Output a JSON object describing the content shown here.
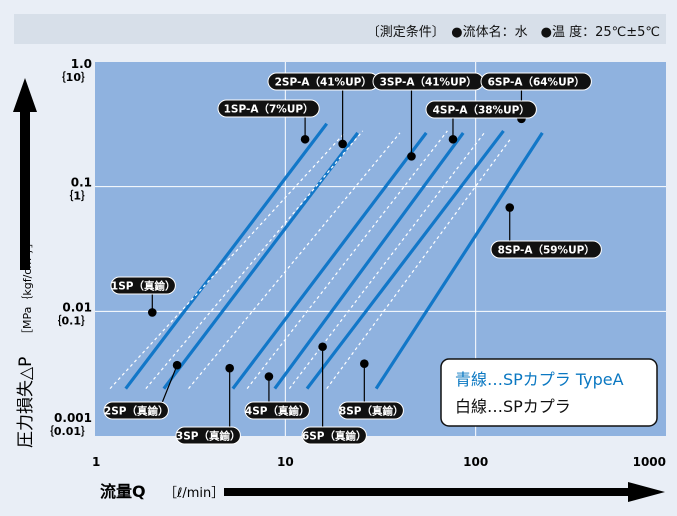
{
  "chart_data": {
    "type": "line",
    "conditions": "〔測定条件〕　●流体名：水　●温 度：25℃±5℃",
    "ylabel": "圧力損失△P",
    "ylabel_unit": "［MPa｛kgf/cm²｝］",
    "xlabel": "流量Q",
    "xlabel_unit": "［ℓ/min］",
    "xscale": "log",
    "yscale": "log",
    "xlim": [
      1,
      1000
    ],
    "ylim": [
      0.001,
      1.0
    ],
    "x_ticks": [
      {
        "value": 1,
        "label": "1"
      },
      {
        "value": 10,
        "label": "10"
      },
      {
        "value": 100,
        "label": "100"
      },
      {
        "value": 1000,
        "label": "1000"
      }
    ],
    "y_ticks": [
      {
        "value": 1.0,
        "label": "1.0",
        "sublabel": "｛10｝"
      },
      {
        "value": 0.1,
        "label": "0.1",
        "sublabel": "｛1｝"
      },
      {
        "value": 0.01,
        "label": "0.01",
        "sublabel": "｛0.1｝"
      },
      {
        "value": 0.001,
        "label": "0.001",
        "sublabel": "｛0.01｝"
      }
    ],
    "grid": true,
    "legend": {
      "placement": "bottom-right",
      "entries": [
        {
          "text": "青線…SPカプラ TypeA",
          "color": "#0b78c2"
        },
        {
          "text": "白線…SPカプラ",
          "color": "#111111"
        }
      ]
    },
    "colors": {
      "background": "#8fb2df",
      "blue_line": "#1277c8",
      "white_line": "#ffffff",
      "label_bg": "#111111"
    },
    "series": [
      {
        "name": "1SP-A（7%UP）",
        "style": "blue",
        "x": [
          1.45,
          16.5
        ],
        "y": [
          0.0024,
          0.32
        ],
        "marker": [
          12.7,
          0.24
        ]
      },
      {
        "name": "1SP（真鍮）",
        "style": "white",
        "x": [
          1.2,
          20.5
        ],
        "y": [
          0.0024,
          0.27
        ],
        "marker": [
          2.0,
          0.0098
        ]
      },
      {
        "name": "2SP-A（41%UP）",
        "style": "blue",
        "x": [
          2.3,
          24
        ],
        "y": [
          0.0024,
          0.27
        ],
        "marker": [
          20,
          0.22
        ]
      },
      {
        "name": "2SP（真鍮）",
        "style": "white",
        "x": [
          1.85,
          25.5
        ],
        "y": [
          0.0024,
          0.28
        ],
        "marker": [
          2.7,
          0.0037
        ]
      },
      {
        "name": "3SP-A（41%UP）",
        "style": "blue",
        "x": [
          5.3,
          55
        ],
        "y": [
          0.0024,
          0.27
        ],
        "marker": [
          46,
          0.175
        ]
      },
      {
        "name": "3SP（真鍮）",
        "style": "white",
        "x": [
          3.1,
          40
        ],
        "y": [
          0.0024,
          0.27
        ],
        "marker": [
          5.1,
          0.0035
        ]
      },
      {
        "name": "4SP-A（38%UP）",
        "style": "blue",
        "x": [
          8.8,
          86
        ],
        "y": [
          0.0024,
          0.27
        ],
        "marker": [
          76,
          0.24
        ]
      },
      {
        "name": "4SP（真鍮）",
        "style": "white",
        "x": [
          6.3,
          71
        ],
        "y": [
          0.0024,
          0.28
        ],
        "marker": [
          8.2,
          0.003
        ]
      },
      {
        "name": "6SP-A（64%UP）",
        "style": "blue",
        "x": [
          13,
          140
        ],
        "y": [
          0.0024,
          0.28
        ],
        "marker": [
          174,
          0.35
        ]
      },
      {
        "name": "6SP（真鍮）",
        "style": "white",
        "x": [
          10.5,
          113
        ],
        "y": [
          0.0024,
          0.28
        ],
        "marker": [
          15.7,
          0.0052
        ]
      },
      {
        "name": "8SP-A（59%UP）",
        "style": "blue",
        "x": [
          30,
          224
        ],
        "y": [
          0.0024,
          0.27
        ],
        "marker": [
          151,
          0.068
        ]
      },
      {
        "name": "8SP（真鍮）",
        "style": "white",
        "x": [
          16.5,
          152
        ],
        "y": [
          0.0024,
          0.24
        ],
        "marker": [
          26,
          0.0038
        ]
      }
    ]
  }
}
